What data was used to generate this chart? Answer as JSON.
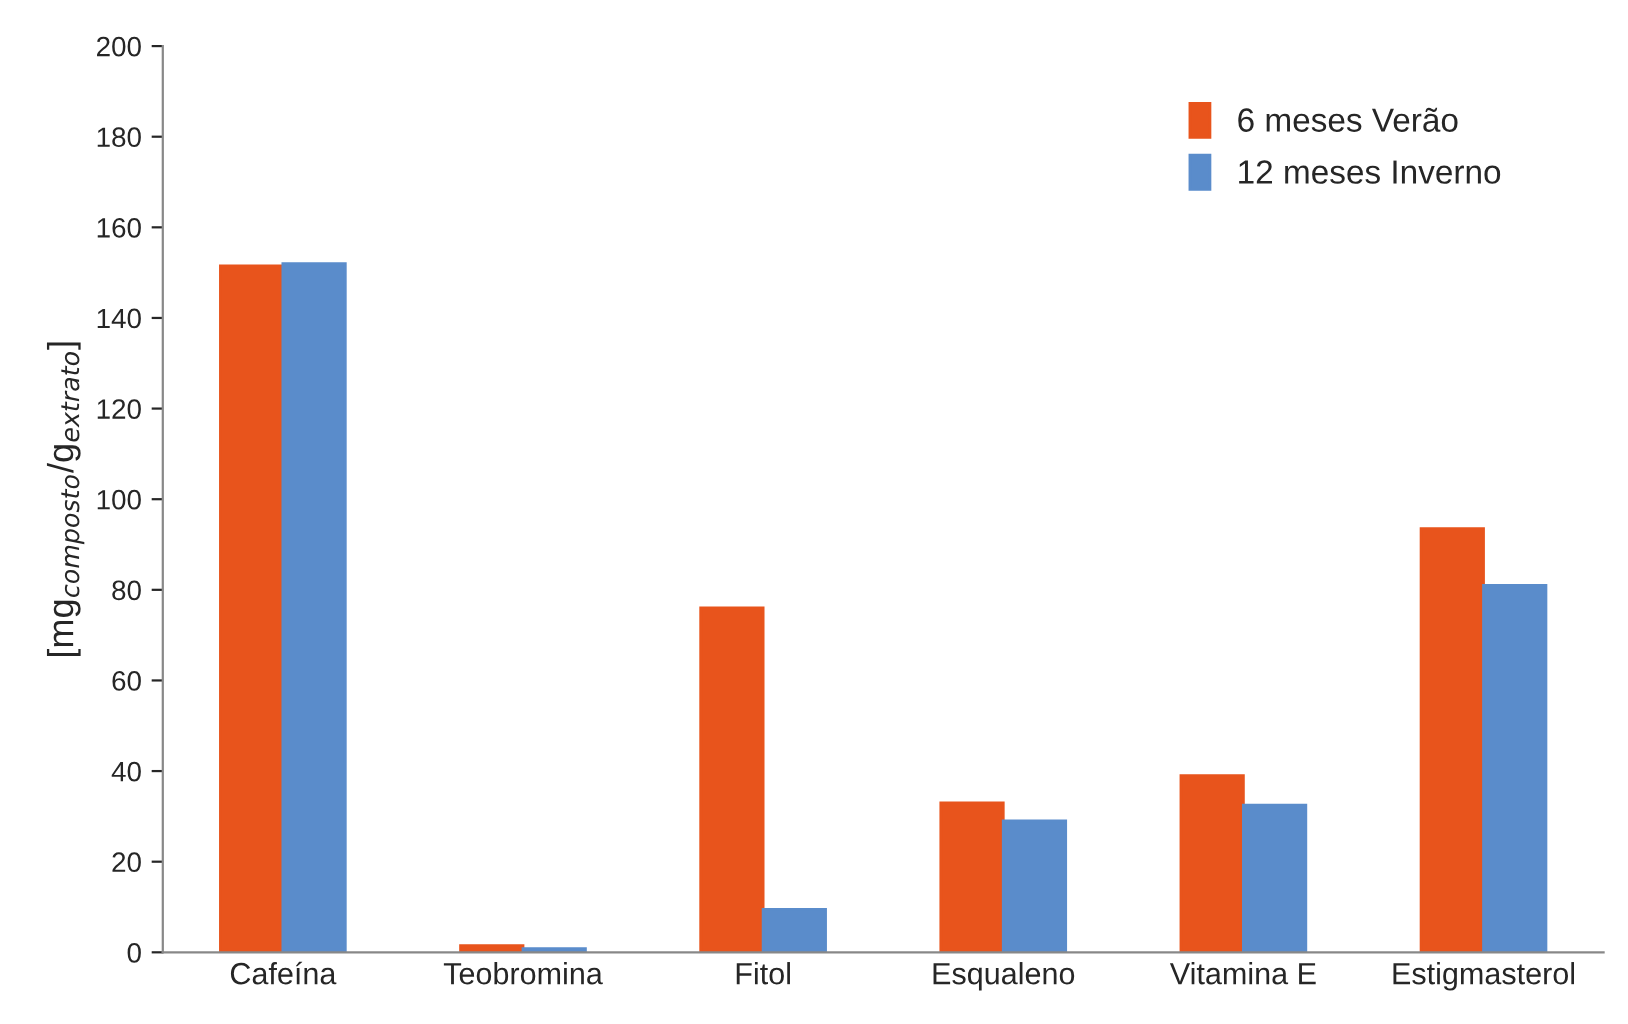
{
  "chart_data": {
    "type": "bar",
    "ylabel": "[mg$_{composto}$/g$_{extrato}$]",
    "categories": [
      "Cafeína",
      "Teobromina",
      "Fitol",
      "Esqualeno",
      "Vitamina E",
      "Estigmasterol"
    ],
    "series": [
      {
        "name": "6 meses Verão",
        "color": "#e8541c",
        "values": [
          151.5,
          1.5,
          76,
          33,
          39,
          93.5
        ]
      },
      {
        "name": "12 meses Inverno",
        "color": "#5a8ccb",
        "values": [
          152,
          0.8,
          9.5,
          29,
          32.5,
          81
        ]
      }
    ],
    "ylim": [
      0,
      200
    ],
    "yticks": [
      0,
      20,
      40,
      60,
      80,
      100,
      120,
      140,
      160,
      180,
      200
    ],
    "grid": false,
    "legend": "top right"
  }
}
